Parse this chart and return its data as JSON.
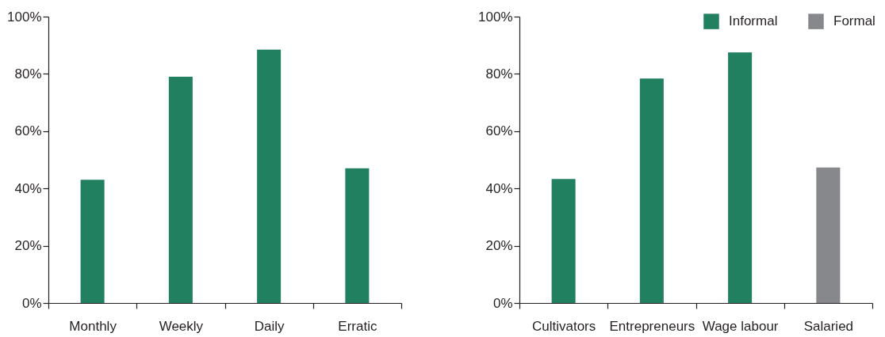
{
  "chart_data": [
    {
      "type": "bar",
      "categories": [
        "Monthly",
        "Weekly",
        "Daily",
        "Erratic"
      ],
      "values": [
        43,
        79,
        88.5,
        47
      ],
      "color": "#21805f",
      "ylim": [
        0,
        100
      ],
      "yticks": [
        {
          "value": 0,
          "label": "0%"
        },
        {
          "value": 20,
          "label": "20%"
        },
        {
          "value": 40,
          "label": "40%"
        },
        {
          "value": 60,
          "label": "60%"
        },
        {
          "value": 80,
          "label": "80%"
        },
        {
          "value": 100,
          "label": "100%"
        }
      ]
    },
    {
      "type": "bar",
      "categories": [
        "Cultivators",
        "Entrepreneurs",
        "Wage labour",
        "Salaried"
      ],
      "series": [
        {
          "name": "Informal",
          "color": "#21805f",
          "values": [
            43.3,
            78.4,
            87.5,
            null
          ]
        },
        {
          "name": "Formal",
          "color": "#87888c",
          "values": [
            null,
            null,
            null,
            47.3
          ]
        }
      ],
      "ylim": [
        0,
        100
      ],
      "yticks": [
        {
          "value": 0,
          "label": "0%"
        },
        {
          "value": 20,
          "label": "20%"
        },
        {
          "value": 40,
          "label": "40%"
        },
        {
          "value": 60,
          "label": "60%"
        },
        {
          "value": 80,
          "label": "80%"
        },
        {
          "value": 100,
          "label": "100%"
        }
      ],
      "legend": "top right"
    }
  ]
}
